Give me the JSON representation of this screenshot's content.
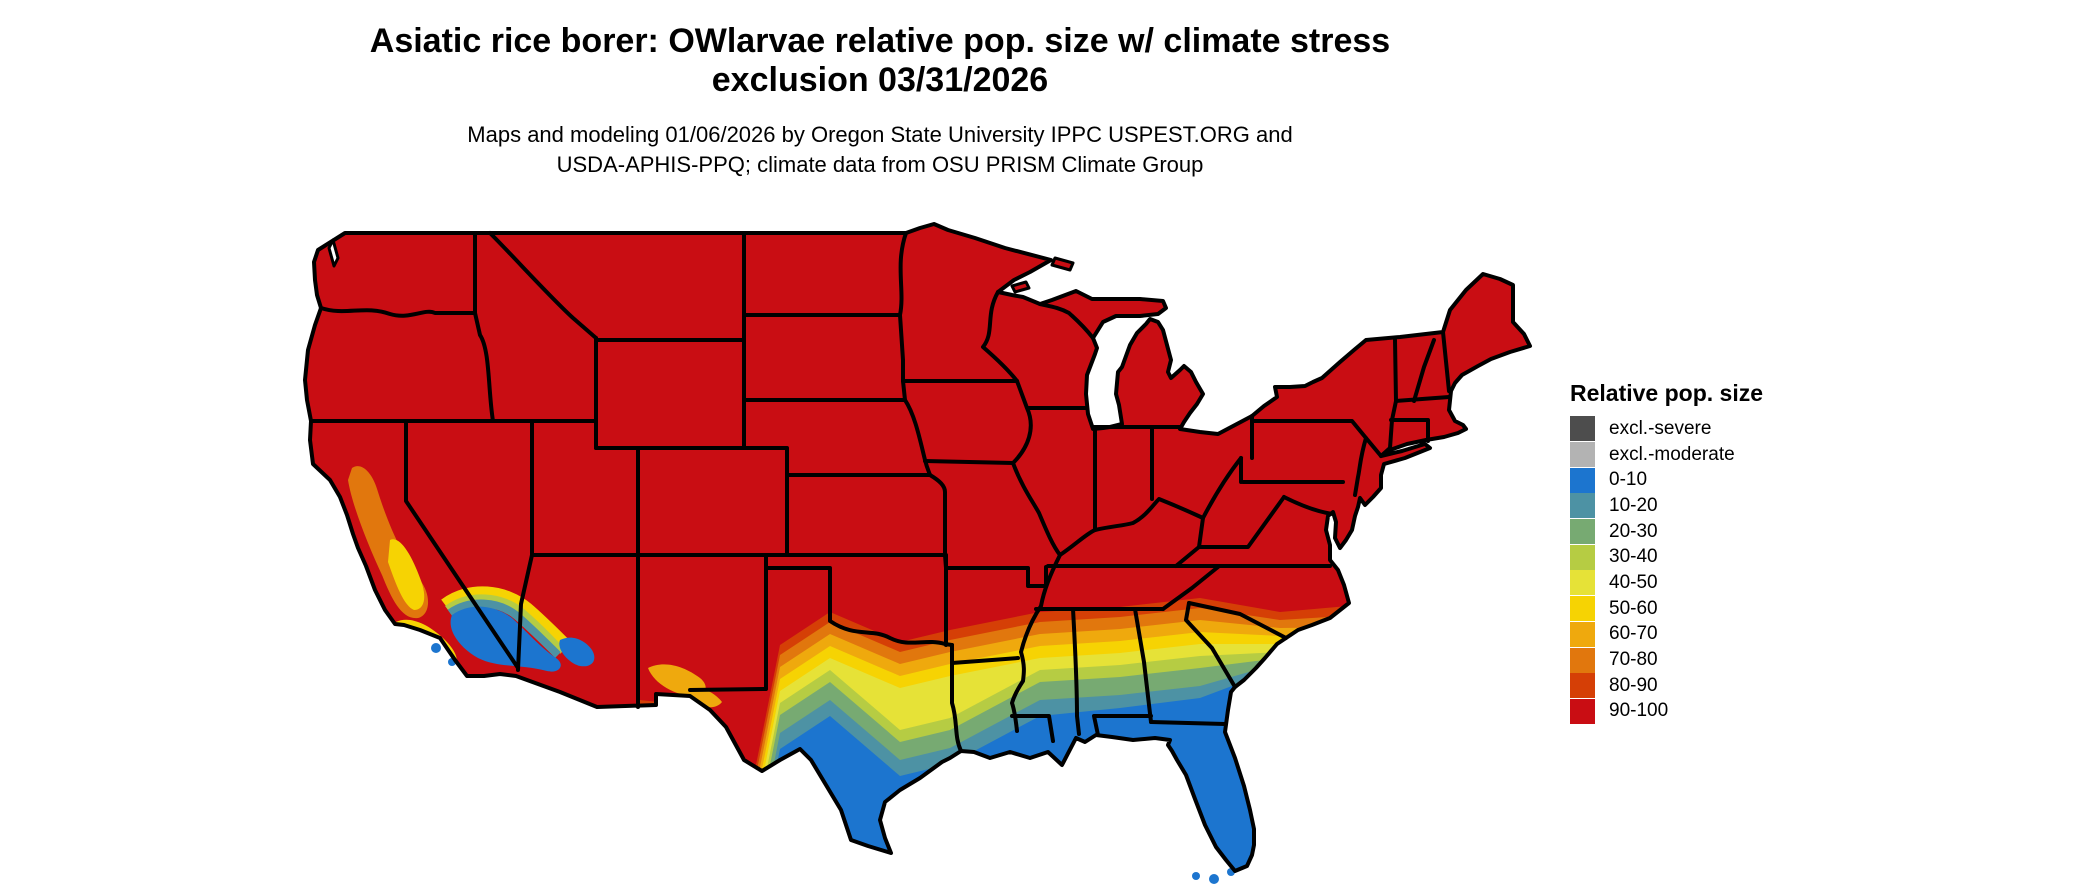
{
  "header": {
    "title_line1": "Asiatic rice borer: OWlarvae relative pop. size w/ climate stress",
    "title_line2": "exclusion 03/31/2026",
    "subtitle_line1": "Maps and modeling 01/06/2026 by Oregon State University IPPC USPEST.ORG and",
    "subtitle_line2": "USDA-APHIS-PPQ; climate data from OSU PRISM Climate Group"
  },
  "legend": {
    "title": "Relative pop. size",
    "items": [
      {
        "label": "excl.-severe",
        "color": "#4d4d4d"
      },
      {
        "label": "excl.-moderate",
        "color": "#b3b3b3"
      },
      {
        "label": "0-10",
        "color": "#1c75cf"
      },
      {
        "label": "10-20",
        "color": "#4d92a4"
      },
      {
        "label": "20-30",
        "color": "#77aa72"
      },
      {
        "label": "30-40",
        "color": "#b6cc43"
      },
      {
        "label": "40-50",
        "color": "#e6e237"
      },
      {
        "label": "50-60",
        "color": "#f6d303"
      },
      {
        "label": "60-70",
        "color": "#efa90d"
      },
      {
        "label": "70-80",
        "color": "#e1770d"
      },
      {
        "label": "80-90",
        "color": "#d53f06"
      },
      {
        "label": "90-100",
        "color": "#c90d13"
      }
    ]
  },
  "map": {
    "region": "Contiguous United States",
    "border_color": "#000000",
    "background_color": "#ffffff"
  },
  "chart_data": {
    "type": "heatmap",
    "title": "Asiatic rice borer: OWlarvae relative pop. size w/ climate stress exclusion 03/31/2026",
    "region": "Contiguous United States (state boundaries shown)",
    "variable": "Relative pop. size (overwintering larvae), percent classes",
    "model_date": "03/31/2026",
    "produced": "01/06/2026",
    "legend_title": "Relative pop. size",
    "classes": [
      "excl.-severe",
      "excl.-moderate",
      "0-10",
      "10-20",
      "20-30",
      "30-40",
      "40-50",
      "50-60",
      "60-70",
      "70-80",
      "80-90",
      "90-100"
    ],
    "class_colors": [
      "#4d4d4d",
      "#b3b3b3",
      "#1c75cf",
      "#4d92a4",
      "#77aa72",
      "#b6cc43",
      "#e6e237",
      "#f6d303",
      "#efa90d",
      "#e1770d",
      "#d53f06",
      "#c90d13"
    ],
    "spatial_pattern": [
      {
        "area": "Most of CONUS: Pacific Northwest, Great Basin, Rockies, Plains, Midwest, Northeast, mid-Atlantic and upland South",
        "class": "90-100"
      },
      {
        "area": "California Central Valley",
        "class": "60-80 ring with 40-60 core"
      },
      {
        "area": "Southern California coast and deserts, southwestern Arizona",
        "class": "0-10 with 10-60 fringes"
      },
      {
        "area": "West-to-east transition band from central Texas and Oklahoma border region through Louisiana, Mississippi, Alabama, Georgia to coastal South Carolina / southern North Carolina",
        "class": "80-90 through 10-20 gradient, northern edge red, southern edge blue"
      },
      {
        "area": "South Texas, Gulf Coast, Louisiana delta, Florida peninsula and Keys, coastal Georgia",
        "class": "0-10"
      }
    ]
  }
}
